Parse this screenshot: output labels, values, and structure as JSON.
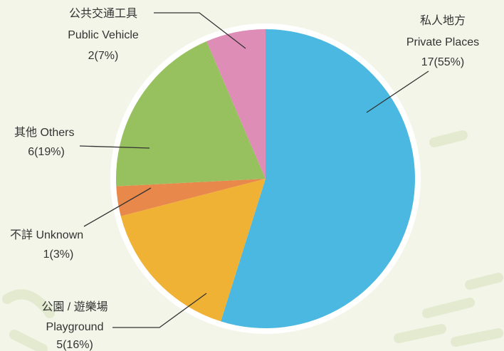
{
  "chart_data": {
    "type": "pie",
    "categories": [
      [
        "私人地方",
        "Private  Places"
      ],
      [
        "公園 / 遊樂場",
        "Playground"
      ],
      [
        "不詳 Unknown"
      ],
      [
        "其他 Others"
      ],
      [
        "公共交通工具",
        "Public Vehicle"
      ]
    ],
    "values": [
      17,
      5,
      1,
      6,
      2
    ],
    "value_labels": [
      "17(55%)",
      "5(16%)",
      "1(3%)",
      "6(19%)",
      "2(7%)"
    ],
    "colors": [
      "#4ab8e0",
      "#f0b234",
      "#e8884b",
      "#97c15f",
      "#de8db6"
    ]
  }
}
